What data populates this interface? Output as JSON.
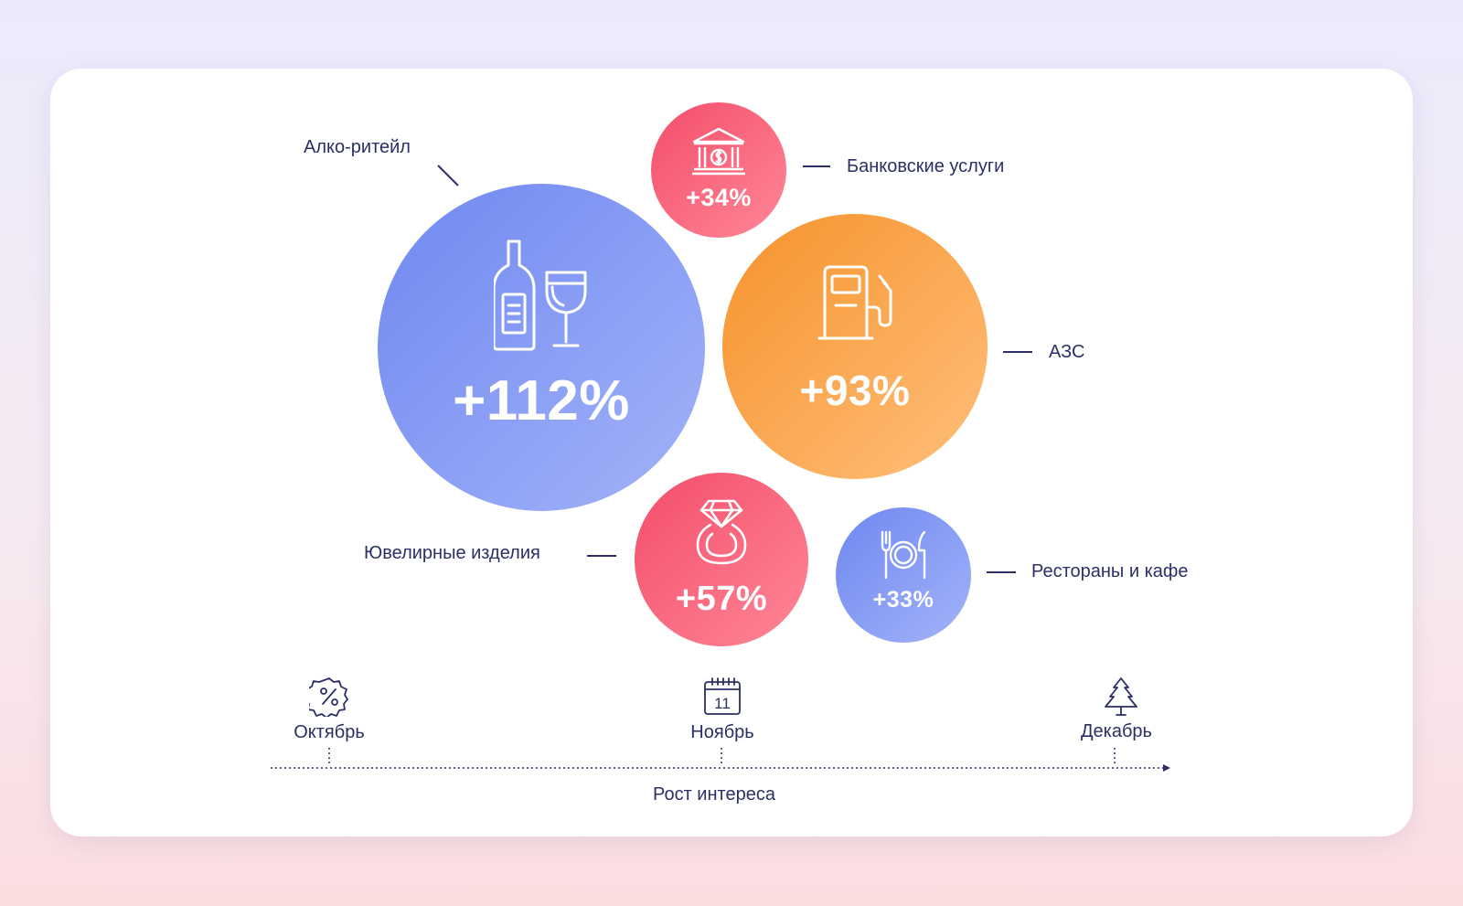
{
  "chart_data": {
    "type": "bubble",
    "title": "",
    "xlabel": "Рост интереса",
    "x_ticks": [
      "Октябрь",
      "Ноябрь",
      "Декабрь"
    ],
    "bubbles": [
      {
        "name": "Алко-ритейл",
        "value": 112,
        "label": "+112%",
        "color": "#7b90f2",
        "icon": "wine-bottle-glass-icon"
      },
      {
        "name": "Банковские услуги",
        "value": 34,
        "label": "+34%",
        "color": "#f8607a",
        "icon": "bank-icon"
      },
      {
        "name": "АЗС",
        "value": 93,
        "label": "+93%",
        "color": "#f89a3a",
        "icon": "fuel-pump-icon"
      },
      {
        "name": "Ювелирные изделия",
        "value": 57,
        "label": "+57%",
        "color": "#f8607a",
        "icon": "diamond-ring-icon"
      },
      {
        "name": "Рестораны и кафе",
        "value": 33,
        "label": "+33%",
        "color": "#7b90f2",
        "icon": "plate-cutlery-icon"
      }
    ]
  },
  "timeline": {
    "months": [
      {
        "label": "Октябрь",
        "icon": "percent-badge-icon"
      },
      {
        "label": "Ноябрь",
        "icon": "calendar-icon",
        "calendar_day": "11"
      },
      {
        "label": "Декабрь",
        "icon": "fir-tree-icon"
      }
    ],
    "axis_label": "Рост интереса"
  },
  "colors": {
    "text": "#2b2f66",
    "blue": "#7b90f2",
    "pink": "#f8607a",
    "orange": "#f89a3a"
  }
}
